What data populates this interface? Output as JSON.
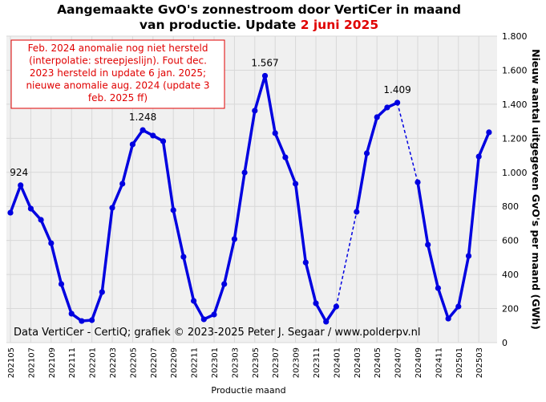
{
  "chart_data": {
    "type": "line",
    "title": [
      "Aangemaakte GvO's zonnestroom door VertiCer in maand",
      "van productie. Update"
    ],
    "title_date": "2 juni 2025",
    "annotation": [
      "Feb. 2024 anomalie nog niet hersteld",
      "(interpolatie: streepjeslijn). Fout dec.",
      "2023 hersteld in update 6 jan. 2025;",
      "nieuwe anomalie aug. 2024 (update 3",
      "feb. 2025 ff)"
    ],
    "source": "Data VertiCer - CertiQ; grafiek © 2023-2025 Peter J. Segaar / www.polderpv.nl",
    "x_label": "Productie maand",
    "y_label": "Nieuw aantal uitgegeven GvO's per maand (GWh)",
    "categories": [
      "202105",
      null,
      "202107",
      null,
      "202109",
      null,
      "202111",
      null,
      "202201",
      null,
      "202203",
      null,
      "202205",
      null,
      "202207",
      null,
      "202209",
      null,
      "202211",
      null,
      "202301",
      null,
      "202303",
      null,
      "202305",
      null,
      "202307",
      null,
      "202309",
      null,
      "202311",
      null,
      "202401",
      null,
      "202403",
      null,
      "202405",
      null,
      "202407",
      null,
      "202409",
      null,
      "202411",
      null,
      "202501",
      null,
      "202503",
      null
    ],
    "series": [
      {
        "color": "#0000e0",
        "values": [
          763,
          924,
          787,
          721,
          584,
          344,
          170,
          127,
          132,
          297,
          792,
          933,
          1164,
          1248,
          1216,
          1183,
          778,
          504,
          245,
          137,
          165,
          344,
          608,
          999,
          1362,
          1567,
          1230,
          1088,
          933,
          471,
          231,
          123,
          212,
          null,
          768,
          1112,
          1324,
          1381,
          1409,
          null,
          942,
          575,
          320,
          141,
          212,
          509,
          1093,
          1235
        ],
        "value_labels": [
          null,
          "924",
          null,
          null,
          null,
          null,
          null,
          null,
          null,
          null,
          null,
          null,
          null,
          "1.248",
          null,
          null,
          null,
          null,
          null,
          null,
          null,
          null,
          null,
          null,
          null,
          "1.567",
          null,
          null,
          null,
          null,
          null,
          null,
          null,
          null,
          null,
          null,
          null,
          null,
          "1.409",
          null,
          null,
          null,
          null,
          null,
          null,
          null,
          null,
          null
        ]
      }
    ],
    "ylim": [
      0,
      1800
    ],
    "yticks": [
      0,
      200,
      400,
      600,
      800,
      {
        "value": 1000,
        "label": "1.000"
      },
      {
        "value": 1200,
        "label": "1.200"
      },
      {
        "value": 1400,
        "label": "1.400"
      },
      {
        "value": 1600,
        "label": "1.600"
      },
      {
        "value": 1800,
        "label": "1.800"
      }
    ],
    "grid": true
  }
}
